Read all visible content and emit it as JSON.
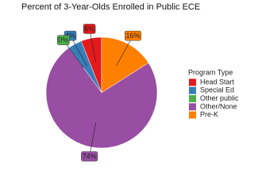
{
  "chart_data": {
    "type": "pie",
    "title": "Percent of 3-Year-Olds Enrolled in Public ECE",
    "legend_title": "Program Type",
    "categories": [
      "Head Start",
      "Special Ed",
      "Other public",
      "Other/None",
      "Pre-K"
    ],
    "values": [
      6,
      4,
      0,
      74,
      16
    ],
    "value_labels": [
      "6%",
      "4%",
      "0%",
      "74%",
      "16%"
    ],
    "colors": [
      "#e41a1c",
      "#377eb8",
      "#4daf4a",
      "#984ea3",
      "#ff7f00"
    ],
    "legend": "right"
  }
}
